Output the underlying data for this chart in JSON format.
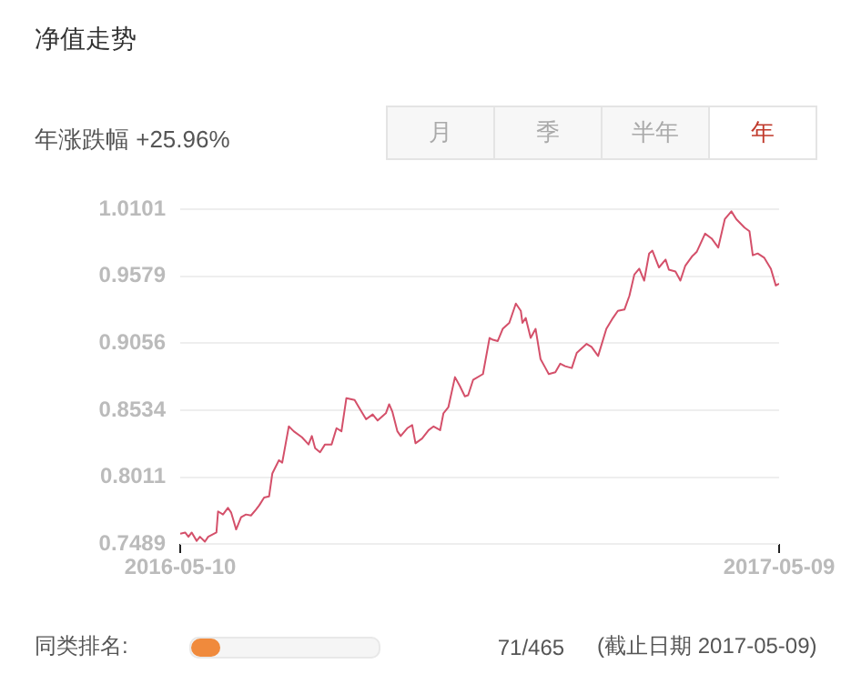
{
  "chart_data": {
    "type": "line",
    "title": "净值走势",
    "subtitle": "年涨跌幅 +25.96%",
    "annotations": [
      "月",
      "季",
      "半年",
      "年",
      "同类排名:",
      "71/465",
      "(截止日期 2017-05-09)"
    ],
    "x": [
      "2016-05-10",
      "2016-05-13",
      "2016-05-15",
      "2016-05-17",
      "2016-05-20",
      "2016-05-22",
      "2016-05-25",
      "2016-05-27",
      "2016-06-01",
      "2016-06-02",
      "2016-06-05",
      "2016-06-08",
      "2016-06-10",
      "2016-06-13",
      "2016-06-16",
      "2016-06-19",
      "2016-06-22",
      "2016-06-25",
      "2016-06-27",
      "2016-06-30",
      "2016-07-03",
      "2016-07-05",
      "2016-07-09",
      "2016-07-11",
      "2016-07-15",
      "2016-07-18",
      "2016-07-23",
      "2016-07-27",
      "2016-07-29",
      "2016-07-31",
      "2016-08-03",
      "2016-08-06",
      "2016-08-10",
      "2016-08-13",
      "2016-08-16",
      "2016-08-19",
      "2016-08-24",
      "2016-08-27",
      "2016-08-31",
      "2016-09-04",
      "2016-09-07",
      "2016-09-12",
      "2016-09-14",
      "2016-09-16",
      "2016-09-19",
      "2016-09-21",
      "2016-09-25",
      "2016-09-28",
      "2016-09-30",
      "2016-10-04",
      "2016-10-08",
      "2016-10-11",
      "2016-10-15",
      "2016-10-17",
      "2016-10-20",
      "2016-10-24",
      "2016-10-27",
      "2016-10-30",
      "2016-11-01",
      "2016-11-04",
      "2016-11-10",
      "2016-11-14",
      "2016-11-16",
      "2016-11-19",
      "2016-11-22",
      "2016-11-26",
      "2016-11-30",
      "2016-12-03",
      "2016-12-04",
      "2016-12-06",
      "2016-12-09",
      "2016-12-12",
      "2016-12-15",
      "2016-12-18",
      "2016-12-20",
      "2016-12-24",
      "2016-12-27",
      "2016-12-30",
      "2017-01-03",
      "2017-01-06",
      "2017-01-12",
      "2017-01-15",
      "2017-01-19",
      "2017-01-24",
      "2017-01-28",
      "2017-01-31",
      "2017-02-04",
      "2017-02-07",
      "2017-02-10",
      "2017-02-13",
      "2017-02-16",
      "2017-02-19",
      "2017-02-21",
      "2017-02-25",
      "2017-03-01",
      "2017-03-03",
      "2017-03-07",
      "2017-03-10",
      "2017-03-13",
      "2017-03-17",
      "2017-03-20",
      "2017-03-25",
      "2017-03-29",
      "2017-04-02",
      "2017-04-06",
      "2017-04-10",
      "2017-04-13",
      "2017-04-18",
      "2017-04-21",
      "2017-04-23",
      "2017-04-26",
      "2017-04-30",
      "2017-05-04",
      "2017-05-07",
      "2017-05-09"
    ],
    "series": [
      {
        "color": "#d4506a",
        "values": [
          0.7569,
          0.7578,
          0.7545,
          0.7578,
          0.7513,
          0.7545,
          0.7507,
          0.7545,
          0.7578,
          0.7743,
          0.7719,
          0.7771,
          0.7733,
          0.7602,
          0.7697,
          0.7719,
          0.7711,
          0.7757,
          0.779,
          0.7852,
          0.786,
          0.804,
          0.8143,
          0.8124,
          0.8407,
          0.8369,
          0.8322,
          0.8266,
          0.8332,
          0.8237,
          0.8205,
          0.8266,
          0.8266,
          0.8393,
          0.8369,
          0.8628,
          0.8614,
          0.8548,
          0.8463,
          0.8501,
          0.8453,
          0.851,
          0.858,
          0.852,
          0.8369,
          0.8332,
          0.8393,
          0.8417,
          0.8275,
          0.8312,
          0.8378,
          0.8407,
          0.8378,
          0.851,
          0.8558,
          0.8792,
          0.8722,
          0.8642,
          0.8651,
          0.877,
          0.8816,
          0.9098,
          0.9084,
          0.9074,
          0.9169,
          0.9216,
          0.9367,
          0.931,
          0.9216,
          0.9254,
          0.9098,
          0.9169,
          0.8933,
          0.8863,
          0.8816,
          0.883,
          0.8897,
          0.8877,
          0.8863,
          0.8981,
          0.9052,
          0.9028,
          0.8957,
          0.9169,
          0.9254,
          0.931,
          0.932,
          0.9427,
          0.9593,
          0.9639,
          0.9546,
          0.9758,
          0.978,
          0.9649,
          0.971,
          0.9631,
          0.9617,
          0.9546,
          0.9663,
          0.9734,
          0.9772,
          0.9913,
          0.9875,
          0.9804,
          1.0026,
          1.0087,
          1.0026,
          0.996,
          0.9931,
          0.9744,
          0.9758,
          0.9724,
          0.9639,
          0.9508,
          0.9522
        ]
      }
    ],
    "xlim": [
      "2016-05-10",
      "2017-05-09"
    ],
    "xticks": [
      "2016-05-10",
      "2017-05-09"
    ],
    "ylim": [
      0.7489,
      1.0101
    ],
    "yticks": [
      0.7489,
      0.8011,
      0.8534,
      0.9056,
      0.9579,
      1.0101
    ],
    "grid": "y",
    "legend": false,
    "marker": "none",
    "line_style": "solid"
  }
}
